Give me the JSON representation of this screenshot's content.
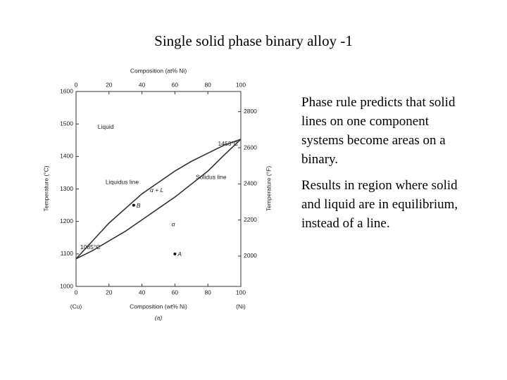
{
  "title": "Single solid phase binary alloy -1",
  "bullets": [
    "Phase rule predicts that solid lines on one component systems become areas on a binary.",
    "Results in region where solid and liquid are in equilibrium, instead of a line."
  ],
  "figure": {
    "top_axis_label": "Composition (at% Ni)",
    "bottom_axis_label": "Composition (wt% Ni)",
    "left_axis_label": "Temperature (°C)",
    "right_axis_label": "Temperature (°F)",
    "left_end_label": "(Cu)",
    "right_end_label": "(Ni)",
    "caption": "(a)",
    "xlim": [
      0,
      100
    ],
    "xticks": [
      0,
      20,
      40,
      60,
      80,
      100
    ],
    "x2lim": [
      0,
      100
    ],
    "x2ticks": [
      0,
      20,
      40,
      60,
      80,
      100
    ],
    "ylim": [
      1000,
      1600
    ],
    "yticks": [
      1000,
      1100,
      1200,
      1300,
      1400,
      1500,
      1600
    ],
    "y2lim": [
      1832,
      2912
    ],
    "y2ticks": [
      2000,
      2200,
      2400,
      2600,
      2800
    ],
    "liquidus": {
      "name": "Liquidus line",
      "x": [
        0,
        10,
        20,
        30,
        40,
        50,
        60,
        70,
        80,
        90,
        100
      ],
      "y": [
        1085,
        1140,
        1195,
        1240,
        1285,
        1320,
        1355,
        1385,
        1410,
        1435,
        1453
      ]
    },
    "solidus": {
      "name": "Solidus line",
      "x": [
        0,
        10,
        20,
        30,
        40,
        50,
        60,
        70,
        80,
        90,
        100
      ],
      "y": [
        1085,
        1110,
        1140,
        1170,
        1205,
        1240,
        1275,
        1315,
        1355,
        1405,
        1453
      ]
    },
    "regions": [
      {
        "label": "Liquid",
        "x": 18,
        "y": 1490
      },
      {
        "label": "α + L",
        "x": 49,
        "y": 1295
      },
      {
        "label": "α",
        "x": 59,
        "y": 1190
      }
    ],
    "melting_points": [
      {
        "label": "1085°C",
        "x": 0,
        "y": 1085
      },
      {
        "label": "1453°C",
        "x": 100,
        "y": 1453
      }
    ],
    "points": [
      {
        "label": "B",
        "x": 35,
        "y": 1250
      },
      {
        "label": "A",
        "x": 60,
        "y": 1100
      }
    ]
  }
}
